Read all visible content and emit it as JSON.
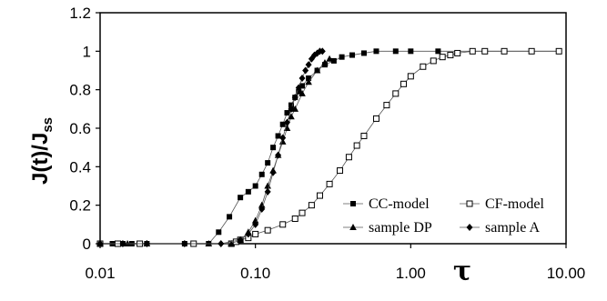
{
  "chart_data": {
    "type": "scatter",
    "xlabel": "τ",
    "ylabel_main": "J(t)/J",
    "ylabel_sub": "ss",
    "x_scale": "log",
    "xlim": [
      0.01,
      10.0
    ],
    "ylim": [
      0,
      1.2
    ],
    "x_ticks": [
      "0.01",
      "0.10",
      "1.00",
      "10.00"
    ],
    "y_ticks": [
      "0",
      "0.2",
      "0.4",
      "0.6",
      "0.8",
      "1",
      "1.2"
    ],
    "grid": false,
    "legend_position": "bottom-right",
    "series": [
      {
        "name": "CC-model",
        "marker": "filled-square",
        "points": [
          [
            0.01,
            0
          ],
          [
            0.012,
            0
          ],
          [
            0.014,
            0
          ],
          [
            0.016,
            0
          ],
          [
            0.02,
            0
          ],
          [
            0.035,
            0
          ],
          [
            0.05,
            0
          ],
          [
            0.058,
            0.06
          ],
          [
            0.068,
            0.14
          ],
          [
            0.08,
            0.24
          ],
          [
            0.09,
            0.27
          ],
          [
            0.1,
            0.3
          ],
          [
            0.11,
            0.36
          ],
          [
            0.12,
            0.42
          ],
          [
            0.13,
            0.5
          ],
          [
            0.14,
            0.56
          ],
          [
            0.15,
            0.62
          ],
          [
            0.16,
            0.68
          ],
          [
            0.17,
            0.72
          ],
          [
            0.18,
            0.76
          ],
          [
            0.19,
            0.79
          ],
          [
            0.2,
            0.82
          ],
          [
            0.22,
            0.86
          ],
          [
            0.25,
            0.9
          ],
          [
            0.28,
            0.93
          ],
          [
            0.32,
            0.95
          ],
          [
            0.36,
            0.97
          ],
          [
            0.42,
            0.98
          ],
          [
            0.5,
            0.99
          ],
          [
            0.6,
            1.0
          ],
          [
            0.8,
            1.0
          ],
          [
            1.0,
            1.0
          ],
          [
            1.5,
            1.0
          ],
          [
            2.5,
            1.0
          ],
          [
            4,
            1.0
          ],
          [
            6,
            1.0
          ],
          [
            9,
            1.0
          ]
        ]
      },
      {
        "name": "CF-model",
        "marker": "open-square",
        "points": [
          [
            0.01,
            0
          ],
          [
            0.013,
            0
          ],
          [
            0.018,
            0
          ],
          [
            0.04,
            0
          ],
          [
            0.07,
            0
          ],
          [
            0.075,
            0.01
          ],
          [
            0.08,
            0.02
          ],
          [
            0.09,
            0.03
          ],
          [
            0.1,
            0.05
          ],
          [
            0.12,
            0.07
          ],
          [
            0.15,
            0.1
          ],
          [
            0.18,
            0.13
          ],
          [
            0.2,
            0.16
          ],
          [
            0.23,
            0.2
          ],
          [
            0.26,
            0.25
          ],
          [
            0.3,
            0.31
          ],
          [
            0.35,
            0.38
          ],
          [
            0.4,
            0.45
          ],
          [
            0.45,
            0.51
          ],
          [
            0.5,
            0.56
          ],
          [
            0.6,
            0.65
          ],
          [
            0.7,
            0.72
          ],
          [
            0.8,
            0.78
          ],
          [
            0.9,
            0.83
          ],
          [
            1.0,
            0.87
          ],
          [
            1.2,
            0.92
          ],
          [
            1.4,
            0.95
          ],
          [
            1.6,
            0.97
          ],
          [
            1.8,
            0.98
          ],
          [
            2.0,
            0.99
          ],
          [
            2.5,
            1.0
          ],
          [
            3,
            1.0
          ],
          [
            4,
            1.0
          ],
          [
            6,
            1.0
          ],
          [
            9,
            1.0
          ]
        ]
      },
      {
        "name": "sample DP",
        "marker": "filled-triangle",
        "points": [
          [
            0.01,
            0
          ],
          [
            0.015,
            0
          ],
          [
            0.02,
            0
          ],
          [
            0.05,
            0
          ],
          [
            0.07,
            0
          ],
          [
            0.08,
            0.02
          ],
          [
            0.09,
            0.06
          ],
          [
            0.1,
            0.12
          ],
          [
            0.11,
            0.2
          ],
          [
            0.12,
            0.3
          ],
          [
            0.13,
            0.38
          ],
          [
            0.14,
            0.46
          ],
          [
            0.15,
            0.53
          ],
          [
            0.16,
            0.6
          ],
          [
            0.17,
            0.66
          ],
          [
            0.18,
            0.7
          ],
          [
            0.2,
            0.78
          ],
          [
            0.22,
            0.84
          ],
          [
            0.25,
            0.9
          ],
          [
            0.28,
            0.94
          ],
          [
            0.3,
            0.96
          ]
        ]
      },
      {
        "name": "sample A",
        "marker": "filled-diamond",
        "points": [
          [
            0.01,
            0
          ],
          [
            0.014,
            0
          ],
          [
            0.02,
            0
          ],
          [
            0.035,
            0
          ],
          [
            0.06,
            0
          ],
          [
            0.08,
            0.02
          ],
          [
            0.09,
            0.05
          ],
          [
            0.1,
            0.1
          ],
          [
            0.11,
            0.18
          ],
          [
            0.12,
            0.27
          ],
          [
            0.13,
            0.37
          ],
          [
            0.14,
            0.46
          ],
          [
            0.15,
            0.55
          ],
          [
            0.16,
            0.63
          ],
          [
            0.17,
            0.7
          ],
          [
            0.18,
            0.76
          ],
          [
            0.19,
            0.81
          ],
          [
            0.2,
            0.86
          ],
          [
            0.21,
            0.9
          ],
          [
            0.22,
            0.93
          ],
          [
            0.23,
            0.96
          ],
          [
            0.24,
            0.98
          ],
          [
            0.25,
            0.99
          ],
          [
            0.26,
            1.0
          ],
          [
            0.27,
            1.0
          ]
        ]
      }
    ]
  }
}
